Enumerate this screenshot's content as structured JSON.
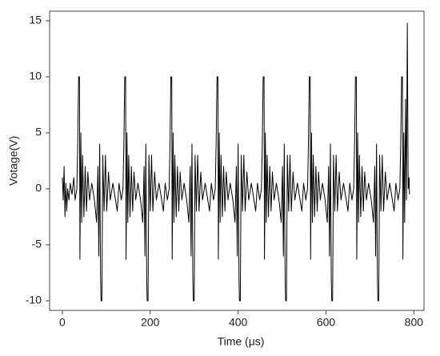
{
  "chart_data": {
    "type": "line",
    "x_label": "Time (μs)",
    "y_label": "Votage(V)",
    "xlim": [
      -29,
      823
    ],
    "ylim": [
      -10.86,
      15.86
    ],
    "xticks": [
      0,
      200,
      400,
      600,
      800
    ],
    "yticks": [
      -10,
      -5,
      0,
      5,
      10,
      15
    ],
    "grid": false,
    "series": [
      {
        "color": "#000000",
        "x": [
          0,
          2,
          4,
          6,
          8,
          10,
          12,
          15,
          18,
          22,
          26,
          29,
          33,
          35,
          37,
          39,
          40,
          42,
          44,
          46,
          49,
          52,
          55,
          58,
          62,
          67,
          73,
          78,
          81,
          83,
          85,
          87,
          88,
          90,
          92,
          95,
          98,
          101,
          105,
          109,
          115,
          121,
          125,
          129,
          134,
          138,
          140,
          142,
          144,
          145,
          147,
          149,
          151,
          154,
          157,
          160,
          163,
          167,
          172,
          178,
          183,
          186,
          188,
          190,
          192,
          193,
          195,
          197,
          200,
          203,
          206,
          210,
          214,
          220,
          226,
          230,
          234,
          239,
          243,
          245,
          247,
          249,
          250,
          252,
          254,
          256,
          259,
          262,
          265,
          268,
          272,
          277,
          283,
          288,
          291,
          293,
          295,
          297,
          298,
          300,
          302,
          305,
          308,
          311,
          315,
          319,
          325,
          331,
          335,
          339,
          344,
          348,
          350,
          352,
          354,
          355,
          357,
          359,
          361,
          364,
          367,
          370,
          373,
          377,
          382,
          388,
          393,
          396,
          398,
          400,
          402,
          403,
          405,
          407,
          410,
          413,
          416,
          420,
          424,
          430,
          436,
          440,
          444,
          449,
          453,
          455,
          457,
          459,
          460,
          462,
          464,
          466,
          469,
          472,
          475,
          478,
          482,
          487,
          493,
          498,
          501,
          503,
          505,
          507,
          508,
          510,
          512,
          515,
          518,
          521,
          525,
          529,
          535,
          541,
          545,
          549,
          554,
          558,
          560,
          562,
          564,
          565,
          567,
          569,
          571,
          574,
          577,
          580,
          583,
          587,
          592,
          598,
          603,
          606,
          608,
          610,
          612,
          613,
          615,
          617,
          620,
          623,
          626,
          630,
          634,
          640,
          646,
          650,
          654,
          659,
          663,
          665,
          667,
          669,
          670,
          672,
          674,
          676,
          679,
          682,
          685,
          688,
          692,
          697,
          703,
          708,
          711,
          713,
          715,
          717,
          718,
          720,
          722,
          725,
          728,
          731,
          735,
          739,
          745,
          751,
          755,
          759,
          764,
          768,
          770,
          772,
          774,
          775,
          777,
          779,
          781,
          783,
          785,
          787,
          789,
          790
        ],
        "values": [
          1,
          -1,
          2,
          -2.5,
          0.5,
          -2,
          0,
          -1,
          0.5,
          -0.5,
          1,
          -1,
          0,
          4,
          10,
          10,
          -6.3,
          5,
          -3,
          3,
          -2.5,
          2,
          -2,
          1.5,
          -1,
          0.5,
          -1,
          -3,
          2,
          -6,
          4,
          -8,
          -10,
          -10,
          3,
          -2,
          3,
          -2,
          1.5,
          -1,
          0.5,
          -1,
          -2,
          0.5,
          -1,
          0,
          4,
          10,
          10,
          -6.3,
          5,
          -3,
          3,
          -2.5,
          2,
          -2,
          1.5,
          -1,
          0.5,
          -1,
          -3,
          2,
          -6,
          4,
          -8,
          -10,
          -10,
          3,
          -2,
          3,
          -2,
          1.5,
          -1,
          0.5,
          -1,
          -2,
          0.5,
          -1,
          0,
          4,
          10,
          10,
          -6.3,
          5,
          -3,
          3,
          -2.5,
          2,
          -2,
          1.5,
          -1,
          0.5,
          -1,
          -3,
          2,
          -6,
          4,
          -8,
          -10,
          -10,
          3,
          -2,
          3,
          -2,
          1.5,
          -1,
          0.5,
          -1,
          -2,
          0.5,
          -1,
          0,
          4,
          10,
          10,
          -6.3,
          5,
          -3,
          3,
          -2.5,
          2,
          -2,
          1.5,
          -1,
          0.5,
          -1,
          -3,
          2,
          -6,
          4,
          -8,
          -10,
          -10,
          3,
          -2,
          3,
          -2,
          1.5,
          -1,
          0.5,
          -1,
          -2,
          0.5,
          -1,
          0,
          4,
          10,
          10,
          -6.3,
          5,
          -3,
          3,
          -2.5,
          2,
          -2,
          1.5,
          -1,
          0.5,
          -1,
          -3,
          2,
          -6,
          4,
          -8,
          -10,
          -10,
          3,
          -2,
          3,
          -2,
          1.5,
          -1,
          0.5,
          -1,
          -2,
          0.5,
          -1,
          0,
          4,
          10,
          10,
          -6.3,
          5,
          -3,
          3,
          -2.5,
          2,
          -2,
          1.5,
          -1,
          0.5,
          -1,
          -3,
          2,
          -6,
          4,
          -8,
          -10,
          -10,
          3,
          -2,
          3,
          -2,
          1.5,
          -1,
          0.5,
          -1,
          -2,
          0.5,
          -1,
          0,
          4,
          10,
          10,
          -6.3,
          5,
          -3,
          3,
          -2.5,
          2,
          -2,
          1.5,
          -1,
          0.5,
          -1,
          -3,
          2,
          -6,
          4,
          -8,
          -10,
          -10,
          3,
          -2,
          3,
          -2,
          1.5,
          -1,
          0.5,
          -1,
          -2,
          0.5,
          -1,
          0,
          4,
          10,
          10,
          -6.3,
          5,
          -3,
          8,
          -1,
          14.8,
          0,
          1,
          -0.5
        ]
      }
    ]
  }
}
